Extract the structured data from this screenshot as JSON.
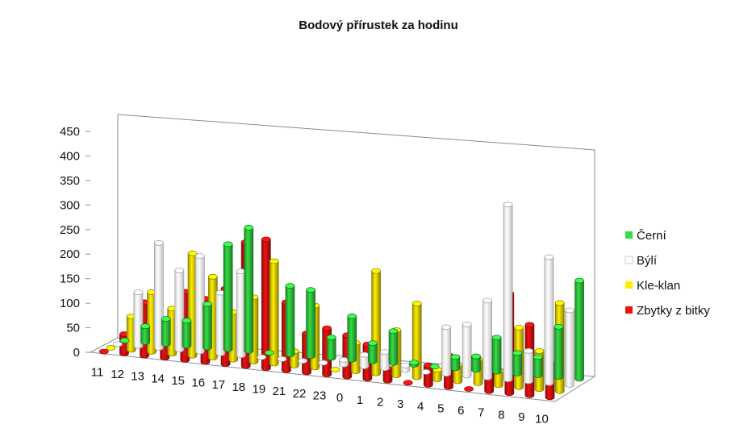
{
  "chart_data": {
    "type": "bar",
    "subtype": "3d-column",
    "title": "Bodový přírustek za hodinu",
    "xlabel": "",
    "ylabel": "",
    "ylim": [
      0,
      450
    ],
    "yticks": [
      0,
      50,
      100,
      150,
      200,
      250,
      300,
      350,
      400,
      450
    ],
    "categories": [
      "11",
      "12",
      "13",
      "14",
      "15",
      "16",
      "17",
      "18",
      "19",
      "21",
      "22",
      "23",
      "0",
      "1",
      "2",
      "3",
      "4",
      "5",
      "6",
      "7",
      "8",
      "9",
      "10"
    ],
    "legend_position": "right",
    "grid": false,
    "series": [
      {
        "name": "Černí",
        "color": "#33dd44",
        "values": [
          0,
          35,
          55,
          55,
          95,
          230,
          270,
          0,
          150,
          145,
          45,
          95,
          40,
          70,
          5,
          0,
          25,
          30,
          75,
          45,
          40,
          110,
          215
        ]
      },
      {
        "name": "Býlí",
        "color": "#ffffff",
        "values": [
          0,
          115,
          225,
          170,
          205,
          130,
          180,
          0,
          0,
          0,
          0,
          10,
          25,
          35,
          10,
          0,
          100,
          110,
          165,
          375,
          65,
          270,
          160
        ]
      },
      {
        "name": "Kle-klan",
        "color": "#ffee00",
        "values": [
          0,
          70,
          125,
          95,
          215,
          170,
          100,
          135,
          215,
          30,
          130,
          0,
          60,
          215,
          95,
          155,
          20,
          35,
          50,
          30,
          125,
          80,
          185
        ]
      },
      {
        "name": "Zbytky z bitky",
        "color": "#ee1111",
        "values": [
          0,
          40,
          110,
          65,
          140,
          130,
          155,
          255,
          265,
          140,
          80,
          95,
          85,
          70,
          25,
          0,
          40,
          65,
          0,
          65,
          205,
          145,
          70
        ]
      }
    ]
  }
}
